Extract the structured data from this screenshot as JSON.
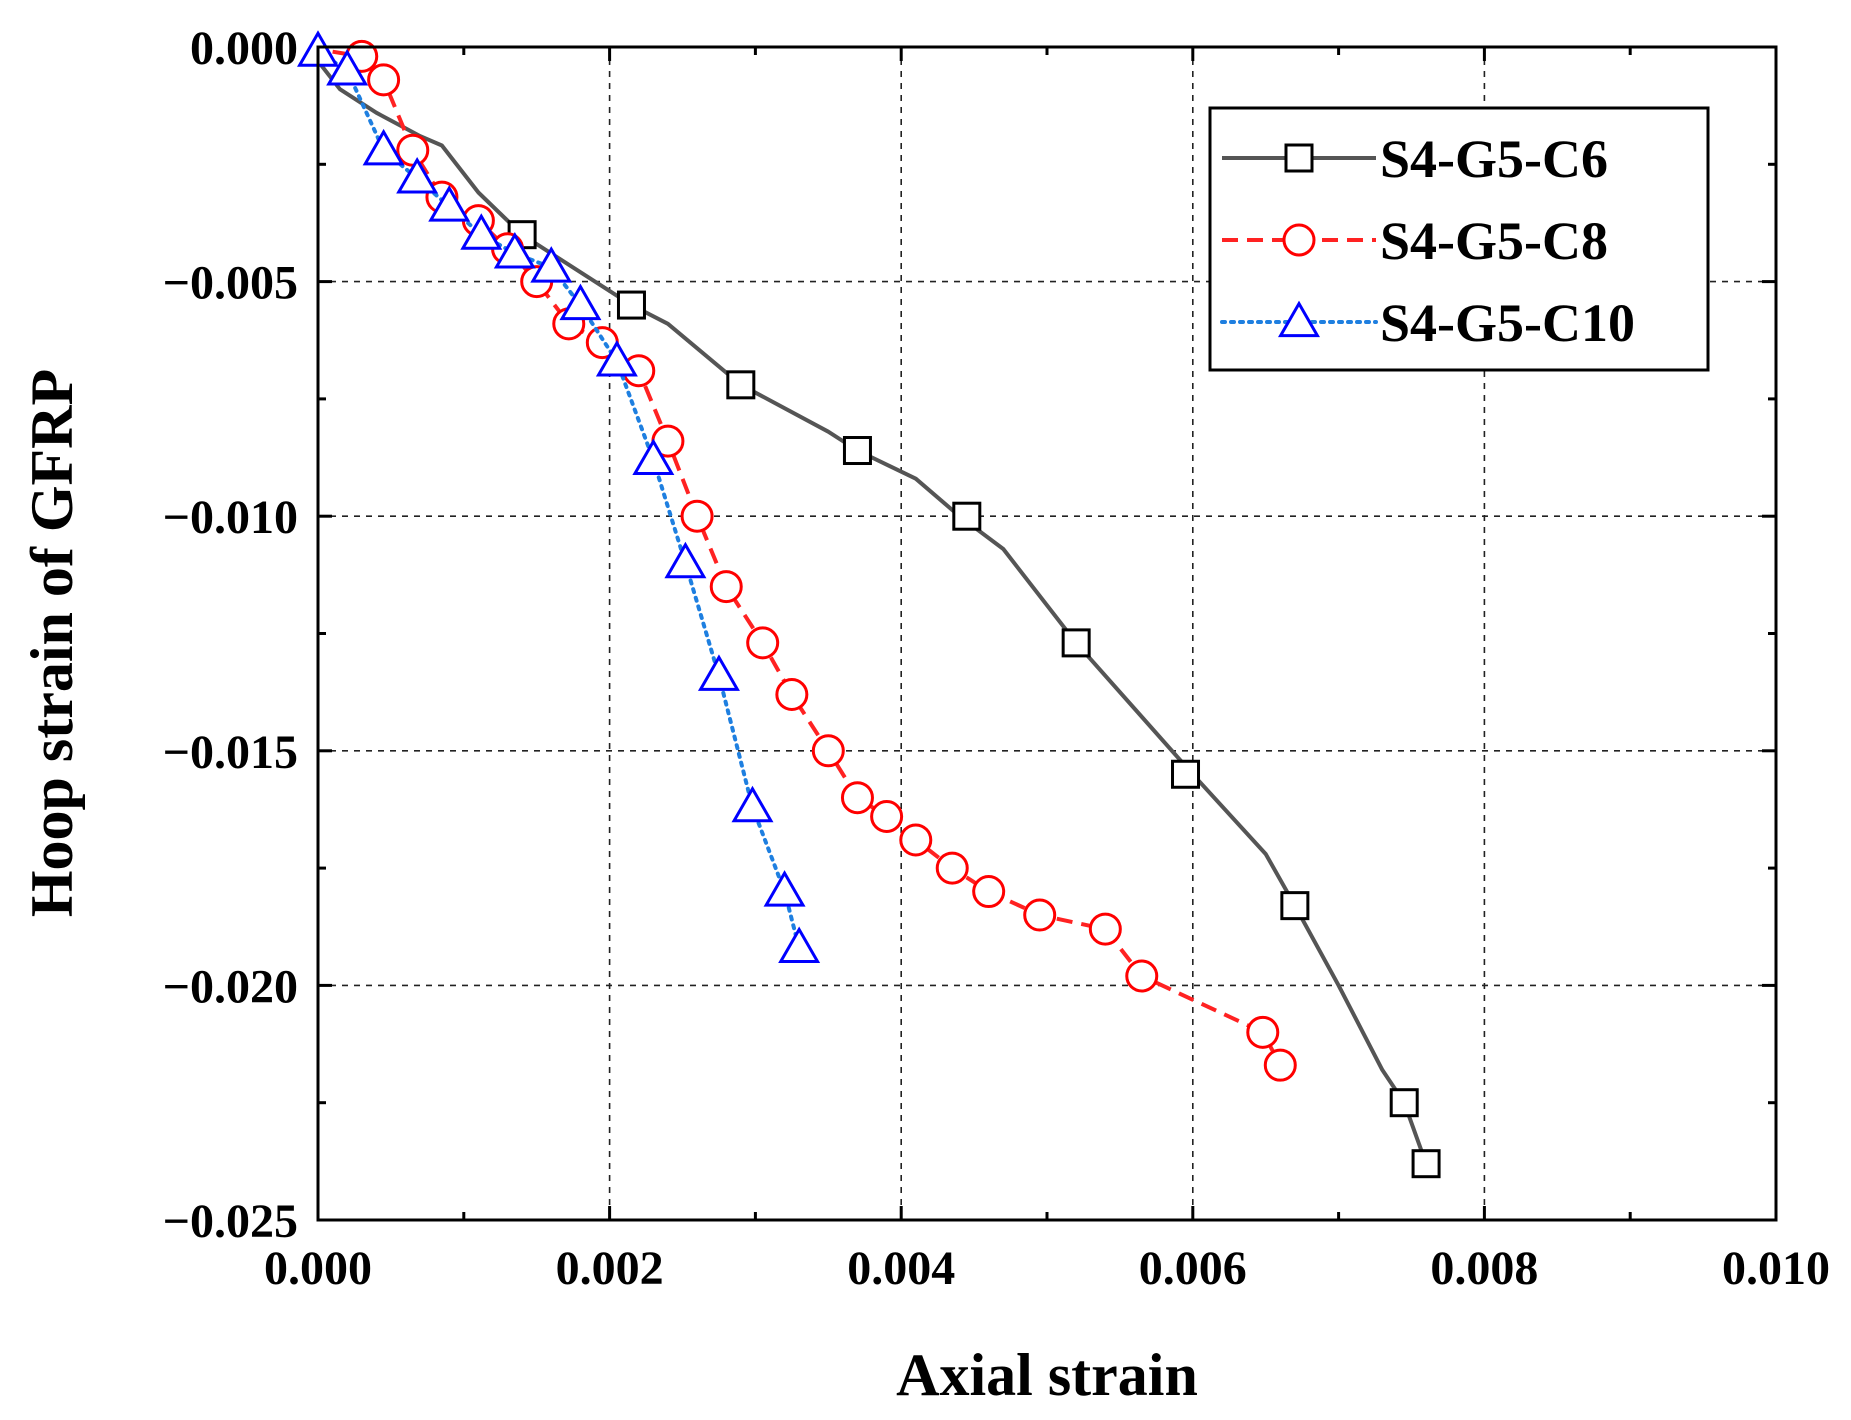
{
  "chart_data": {
    "type": "line",
    "xlabel": "Axial strain",
    "ylabel": "Hoop strain of GFRP",
    "xlim": [
      0,
      0.01
    ],
    "ylim": [
      -0.025,
      0
    ],
    "x_ticks": [
      0,
      0.002,
      0.004,
      0.006,
      0.008,
      0.01
    ],
    "x_tick_labels": [
      "0.000",
      "0.002",
      "0.004",
      "0.006",
      "0.008",
      "0.010"
    ],
    "y_ticks": [
      0,
      -0.005,
      -0.01,
      -0.015,
      -0.02,
      -0.025
    ],
    "y_tick_labels": [
      "0.000",
      "−0.005",
      "−0.010",
      "−0.015",
      "−0.020",
      "−0.025"
    ],
    "grid": true,
    "legend_position": "top-right",
    "series": [
      {
        "name": "S4-G5-C6",
        "color": "#555555",
        "marker_color": "#000000",
        "line_style": "solid",
        "marker": "square",
        "line": [
          [
            0,
            -0.0003
          ],
          [
            0.00015,
            -0.0009
          ],
          [
            0.0004,
            -0.0014
          ],
          [
            0.0007,
            -0.0019
          ],
          [
            0.00085,
            -0.0021
          ],
          [
            0.0011,
            -0.0031
          ],
          [
            0.0014,
            -0.004
          ],
          [
            0.0019,
            -0.005
          ],
          [
            0.00215,
            -0.0055
          ],
          [
            0.0024,
            -0.0059
          ],
          [
            0.0029,
            -0.0072
          ],
          [
            0.0035,
            -0.0082
          ],
          [
            0.0037,
            -0.0086
          ],
          [
            0.0041,
            -0.0092
          ],
          [
            0.0044,
            -0.01
          ],
          [
            0.0047,
            -0.0107
          ],
          [
            0.0052,
            -0.0127
          ],
          [
            0.006,
            -0.0155
          ],
          [
            0.0065,
            -0.0172
          ],
          [
            0.0067,
            -0.0183
          ],
          [
            0.007,
            -0.02
          ],
          [
            0.0073,
            -0.0218
          ],
          [
            0.00745,
            -0.0225
          ],
          [
            0.0076,
            -0.0238
          ]
        ],
        "markers": [
          [
            0.0014,
            -0.004
          ],
          [
            0.00215,
            -0.0055
          ],
          [
            0.0029,
            -0.0072
          ],
          [
            0.0037,
            -0.0086
          ],
          [
            0.00445,
            -0.01
          ],
          [
            0.0052,
            -0.0127
          ],
          [
            0.00595,
            -0.0155
          ],
          [
            0.0067,
            -0.0183
          ],
          [
            0.00745,
            -0.0225
          ],
          [
            0.0076,
            -0.0238
          ]
        ]
      },
      {
        "name": "S4-G5-C8",
        "color": "#ff2222",
        "marker_color": "#ff0000",
        "line_style": "dashed",
        "marker": "circle",
        "line": [
          [
            0.0001,
            -0.0001
          ],
          [
            0.0003,
            -0.0002
          ],
          [
            0.00045,
            -0.0007
          ],
          [
            0.00065,
            -0.0022
          ],
          [
            0.00085,
            -0.0032
          ],
          [
            0.0011,
            -0.0037
          ],
          [
            0.0013,
            -0.0043
          ],
          [
            0.0015,
            -0.005
          ],
          [
            0.00172,
            -0.0059
          ],
          [
            0.00195,
            -0.0063
          ],
          [
            0.0022,
            -0.0069
          ],
          [
            0.0024,
            -0.0084
          ],
          [
            0.0026,
            -0.01
          ],
          [
            0.0028,
            -0.0115
          ],
          [
            0.00305,
            -0.0127
          ],
          [
            0.00325,
            -0.0138
          ],
          [
            0.0035,
            -0.015
          ],
          [
            0.0037,
            -0.016
          ],
          [
            0.0039,
            -0.0164
          ],
          [
            0.0041,
            -0.0169
          ],
          [
            0.00435,
            -0.0175
          ],
          [
            0.0046,
            -0.018
          ],
          [
            0.00495,
            -0.0185
          ],
          [
            0.0054,
            -0.0188
          ],
          [
            0.00565,
            -0.0198
          ],
          [
            0.00648,
            -0.021
          ],
          [
            0.0066,
            -0.0217
          ]
        ],
        "markers": [
          [
            0.0003,
            -0.0002
          ],
          [
            0.00045,
            -0.0007
          ],
          [
            0.00065,
            -0.0022
          ],
          [
            0.00085,
            -0.0032
          ],
          [
            0.0011,
            -0.0037
          ],
          [
            0.0013,
            -0.0043
          ],
          [
            0.0015,
            -0.005
          ],
          [
            0.00172,
            -0.0059
          ],
          [
            0.00195,
            -0.0063
          ],
          [
            0.0022,
            -0.0069
          ],
          [
            0.0024,
            -0.0084
          ],
          [
            0.0026,
            -0.01
          ],
          [
            0.0028,
            -0.0115
          ],
          [
            0.00305,
            -0.0127
          ],
          [
            0.00325,
            -0.0138
          ],
          [
            0.0035,
            -0.015
          ],
          [
            0.0037,
            -0.016
          ],
          [
            0.0039,
            -0.0164
          ],
          [
            0.0041,
            -0.0169
          ],
          [
            0.00435,
            -0.0175
          ],
          [
            0.0046,
            -0.018
          ],
          [
            0.00495,
            -0.0185
          ],
          [
            0.0054,
            -0.0188
          ],
          [
            0.00565,
            -0.0198
          ],
          [
            0.00648,
            -0.021
          ],
          [
            0.0066,
            -0.0217
          ]
        ]
      },
      {
        "name": "S4-G5-C10",
        "color": "#1e7fe0",
        "marker_color": "#0000ff",
        "line_style": "dotted",
        "marker": "triangle",
        "line": [
          [
            0,
            -0.0001
          ],
          [
            0.0002,
            -0.0005
          ],
          [
            0.00045,
            -0.0022
          ],
          [
            0.00068,
            -0.0028
          ],
          [
            0.0009,
            -0.0034
          ],
          [
            0.00112,
            -0.004
          ],
          [
            0.00135,
            -0.0044
          ],
          [
            0.0016,
            -0.0047
          ],
          [
            0.0018,
            -0.0055
          ],
          [
            0.00205,
            -0.0067
          ],
          [
            0.0023,
            -0.0088
          ],
          [
            0.00252,
            -0.011
          ],
          [
            0.00275,
            -0.0134
          ],
          [
            0.00298,
            -0.0162
          ],
          [
            0.0032,
            -0.018
          ],
          [
            0.0033,
            -0.0192
          ]
        ],
        "markers": [
          [
            0,
            -0.0001
          ],
          [
            0.0002,
            -0.0005
          ],
          [
            0.00045,
            -0.0022
          ],
          [
            0.00068,
            -0.0028
          ],
          [
            0.0009,
            -0.0034
          ],
          [
            0.00112,
            -0.004
          ],
          [
            0.00135,
            -0.0044
          ],
          [
            0.0016,
            -0.0047
          ],
          [
            0.0018,
            -0.0055
          ],
          [
            0.00205,
            -0.0067
          ],
          [
            0.0023,
            -0.0088
          ],
          [
            0.00252,
            -0.011
          ],
          [
            0.00275,
            -0.0134
          ],
          [
            0.00298,
            -0.0162
          ],
          [
            0.0032,
            -0.018
          ],
          [
            0.0033,
            -0.0192
          ]
        ]
      }
    ]
  }
}
